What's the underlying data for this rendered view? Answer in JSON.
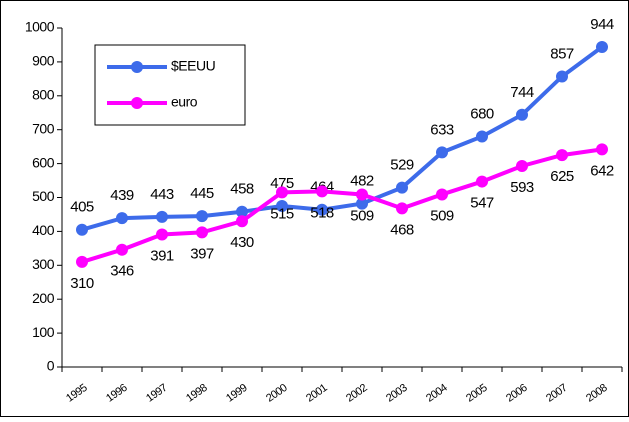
{
  "chart_data": {
    "type": "line",
    "categories": [
      "1995",
      "1996",
      "1997",
      "1998",
      "1999",
      "2000",
      "2001",
      "2002",
      "2003",
      "2004",
      "2005",
      "2006",
      "2007",
      "2008"
    ],
    "series": [
      {
        "name": "$EEUU",
        "color": "#3d6bea",
        "values": [
          405,
          439,
          443,
          445,
          458,
          475,
          464,
          482,
          529,
          633,
          680,
          744,
          857,
          944
        ]
      },
      {
        "name": "euro",
        "color": "#ff00ff",
        "values": [
          310,
          346,
          391,
          397,
          430,
          515,
          518,
          509,
          468,
          509,
          547,
          593,
          625,
          642
        ]
      }
    ],
    "ylim": [
      0,
      1000
    ],
    "yticks": [
      0,
      100,
      200,
      300,
      400,
      500,
      600,
      700,
      800,
      900,
      1000
    ],
    "grid": false,
    "legend": "upper left"
  }
}
